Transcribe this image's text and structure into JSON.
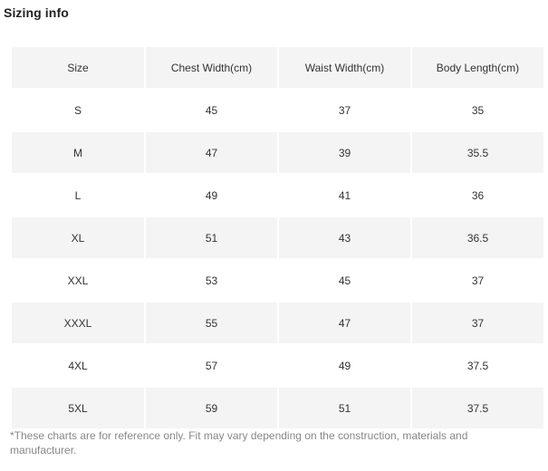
{
  "title": "Sizing info",
  "table": {
    "headers": [
      "Size",
      "Chest Width(cm)",
      "Waist Width(cm)",
      "Body Length(cm)"
    ],
    "rows": [
      [
        "S",
        "45",
        "37",
        "35"
      ],
      [
        "M",
        "47",
        "39",
        "35.5"
      ],
      [
        "L",
        "49",
        "41",
        "36"
      ],
      [
        "XL",
        "51",
        "43",
        "36.5"
      ],
      [
        "XXL",
        "53",
        "45",
        "37"
      ],
      [
        "XXXL",
        "55",
        "47",
        "37"
      ],
      [
        "4XL",
        "57",
        "49",
        "37.5"
      ],
      [
        "5XL",
        "59",
        "51",
        "37.5"
      ]
    ]
  },
  "note": "*These charts are for reference only. Fit may vary depending on the construction, materials and manufacturer.",
  "colors": {
    "shaded_row": "#f4f4f4",
    "text": "#333333",
    "note_text": "#888888"
  }
}
